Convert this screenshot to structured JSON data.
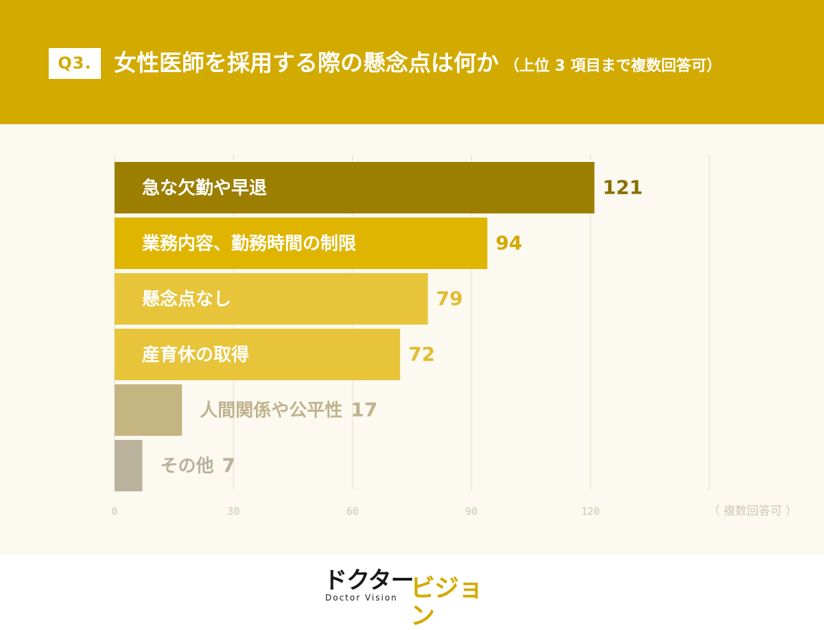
{
  "header": {
    "badge": "Q3.",
    "title": "女性医師を採用する際の懸念点は何か",
    "subtitle": "（上位 3 項目まで複数回答可）"
  },
  "chart_data": {
    "type": "bar",
    "orientation": "horizontal",
    "categories": [
      "急な欠勤や早退",
      "業務内容、勤務時間の制限",
      "懸念点なし",
      "産育休の取得",
      "人間関係や公平性",
      "その他"
    ],
    "values": [
      121,
      94,
      79,
      72,
      17,
      7
    ],
    "xlim": [
      0,
      150
    ],
    "xticks": [
      0,
      30,
      60,
      90,
      120
    ],
    "xlabel": "（ 複数回答可 ）",
    "grid": true,
    "bar_colors": [
      "#9c7e00",
      "#e0b500",
      "#e7c43a",
      "#e7c43a",
      "#c4b581",
      "#bab29d"
    ],
    "value_label_colors": [
      "#8a6f00",
      "#d3aa00",
      "#e2bb30",
      "#e2bb30",
      "#bfb38d",
      "#b8b09c"
    ]
  },
  "colors": {
    "header_bg": "#d3aa00",
    "chart_bg": "#fbf9f0",
    "gridline": "#ede8d6",
    "tick_label": "#cfc8b2"
  },
  "footer": {
    "logo_jp_left": "ドクター",
    "logo_en": "Doctor Vision",
    "logo_jp_right": "ビジョン"
  }
}
